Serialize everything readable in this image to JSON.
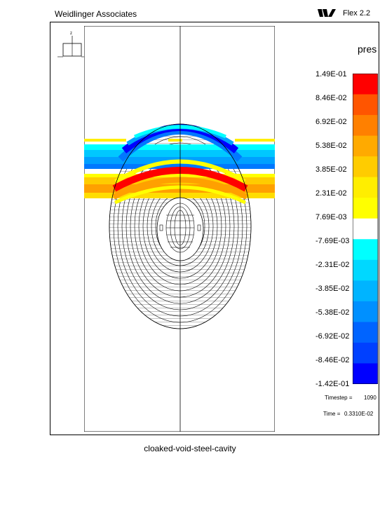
{
  "header": {
    "company": "Weidlinger Associates",
    "logo_icon": "wa-logo-icon",
    "product": "Flex 2.2"
  },
  "axes_triad": {
    "z_label": "z",
    "x_label": "x",
    "y_label": "y"
  },
  "legend": {
    "variable": "pres",
    "tick_labels": [
      "1.49E-01",
      "8.46E-02",
      "6.92E-02",
      "5.38E-02",
      "3.85E-02",
      "2.31E-02",
      "7.69E-03",
      "-7.69E-03",
      "-2.31E-02",
      "-3.85E-02",
      "-5.38E-02",
      "-6.92E-02",
      "-8.46E-02",
      "-1.42E-01"
    ],
    "colors": [
      "#ff0000",
      "#ff5500",
      "#ff8000",
      "#ffaa00",
      "#ffcc00",
      "#ffee00",
      "#ffff00",
      "#ffffff",
      "#00ffff",
      "#00d8ff",
      "#00b4ff",
      "#0090ff",
      "#0064ff",
      "#0040ff",
      "#0000ff"
    ]
  },
  "info": {
    "timestep_label": "Timestep =",
    "timestep_value": "1090",
    "time_label": "Time =",
    "time_value": "0.3310E-02"
  },
  "footer": {
    "title": "cloaked-void-steel-cavity"
  }
}
